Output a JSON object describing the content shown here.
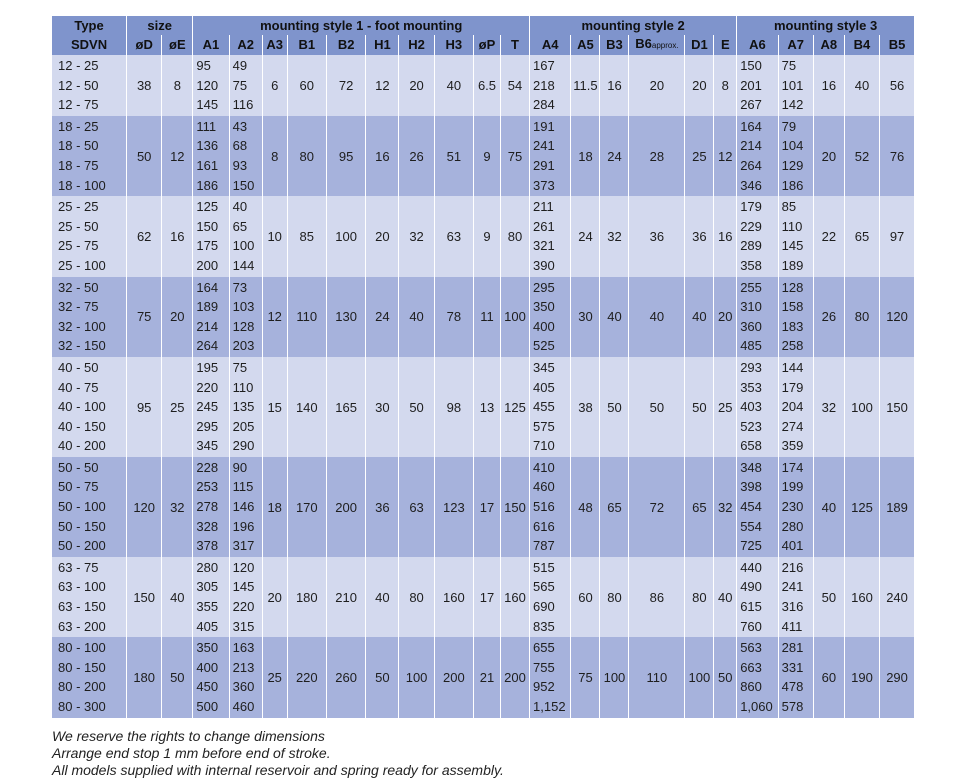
{
  "headers": {
    "type_top": "Type",
    "type_bottom": "SDVN",
    "size": "size",
    "style1": "mounting style 1 - foot mounting",
    "style2": "mounting style 2",
    "style3": "mounting style 3",
    "cols": [
      "øD",
      "øE",
      "A1",
      "A2",
      "A3",
      "B1",
      "B2",
      "H1",
      "H2",
      "H3",
      "øP",
      "T",
      "A4",
      "A5",
      "B3",
      "B6",
      "D1",
      "E",
      "A6",
      "A7",
      "A8",
      "B4",
      "B5"
    ],
    "approx": "approx."
  },
  "groups": [
    {
      "types": [
        "12  -  25",
        "12  -  50",
        "12  -  75"
      ],
      "A1": [
        "95",
        "120",
        "145"
      ],
      "A2": [
        "49",
        "75",
        "116"
      ],
      "A4": [
        "167",
        "218",
        "284"
      ],
      "A6": [
        "150",
        "201",
        "267"
      ],
      "A7": [
        "75",
        "101",
        "142"
      ],
      "common": {
        "D": "38",
        "E": "8",
        "A3": "6",
        "B1": "60",
        "B2": "72",
        "H1": "12",
        "H2": "20",
        "H3": "40",
        "P": "6.5",
        "T": "54",
        "A5": "11.5",
        "B3": "16",
        "B6": "20",
        "D1": "20",
        "E2": "8",
        "A8": "16",
        "B4": "40",
        "B5": "56"
      }
    },
    {
      "types": [
        "18  -  25",
        "18  -  50",
        "18  -  75",
        "18  - 100"
      ],
      "A1": [
        "111",
        "136",
        "161",
        "186"
      ],
      "A2": [
        "43",
        "68",
        "93",
        "150"
      ],
      "A4": [
        "191",
        "241",
        "291",
        "373"
      ],
      "A6": [
        "164",
        "214",
        "264",
        "346"
      ],
      "A7": [
        "79",
        "104",
        "129",
        "186"
      ],
      "common": {
        "D": "50",
        "E": "12",
        "A3": "8",
        "B1": "80",
        "B2": "95",
        "H1": "16",
        "H2": "26",
        "H3": "51",
        "P": "9",
        "T": "75",
        "A5": "18",
        "B3": "24",
        "B6": "28",
        "D1": "25",
        "E2": "12",
        "A8": "20",
        "B4": "52",
        "B5": "76"
      }
    },
    {
      "types": [
        "25  -  25",
        "25  -  50",
        "25  -  75",
        "25  - 100"
      ],
      "A1": [
        "125",
        "150",
        "175",
        "200"
      ],
      "A2": [
        "40",
        "65",
        "100",
        "144"
      ],
      "A4": [
        "211",
        "261",
        "321",
        "390"
      ],
      "A6": [
        "179",
        "229",
        "289",
        "358"
      ],
      "A7": [
        "85",
        "110",
        "145",
        "189"
      ],
      "common": {
        "D": "62",
        "E": "16",
        "A3": "10",
        "B1": "85",
        "B2": "100",
        "H1": "20",
        "H2": "32",
        "H3": "63",
        "P": "9",
        "T": "80",
        "A5": "24",
        "B3": "32",
        "B6": "36",
        "D1": "36",
        "E2": "16",
        "A8": "22",
        "B4": "65",
        "B5": "97"
      }
    },
    {
      "types": [
        "32  -  50",
        "32  -  75",
        "32  - 100",
        "32  - 150"
      ],
      "A1": [
        "164",
        "189",
        "214",
        "264"
      ],
      "A2": [
        "73",
        "103",
        "128",
        "203"
      ],
      "A4": [
        "295",
        "350",
        "400",
        "525"
      ],
      "A6": [
        "255",
        "310",
        "360",
        "485"
      ],
      "A7": [
        "128",
        "158",
        "183",
        "258"
      ],
      "common": {
        "D": "75",
        "E": "20",
        "A3": "12",
        "B1": "110",
        "B2": "130",
        "H1": "24",
        "H2": "40",
        "H3": "78",
        "P": "11",
        "T": "100",
        "A5": "30",
        "B3": "40",
        "B6": "40",
        "D1": "40",
        "E2": "20",
        "A8": "26",
        "B4": "80",
        "B5": "120"
      }
    },
    {
      "types": [
        "40  -  50",
        "40  -  75",
        "40  - 100",
        "40  - 150",
        "40  - 200"
      ],
      "A1": [
        "195",
        "220",
        "245",
        "295",
        "345"
      ],
      "A2": [
        "75",
        "110",
        "135",
        "205",
        "290"
      ],
      "A4": [
        "345",
        "405",
        "455",
        "575",
        "710"
      ],
      "A6": [
        "293",
        "353",
        "403",
        "523",
        "658"
      ],
      "A7": [
        "144",
        "179",
        "204",
        "274",
        "359"
      ],
      "common": {
        "D": "95",
        "E": "25",
        "A3": "15",
        "B1": "140",
        "B2": "165",
        "H1": "30",
        "H2": "50",
        "H3": "98",
        "P": "13",
        "T": "125",
        "A5": "38",
        "B3": "50",
        "B6": "50",
        "D1": "50",
        "E2": "25",
        "A8": "32",
        "B4": "100",
        "B5": "150"
      }
    },
    {
      "types": [
        "50  -  50",
        "50  -  75",
        "50  - 100",
        "50  - 150",
        "50  - 200"
      ],
      "A1": [
        "228",
        "253",
        "278",
        "328",
        "378"
      ],
      "A2": [
        "90",
        "115",
        "146",
        "196",
        "317"
      ],
      "A4": [
        "410",
        "460",
        "516",
        "616",
        "787"
      ],
      "A6": [
        "348",
        "398",
        "454",
        "554",
        "725"
      ],
      "A7": [
        "174",
        "199",
        "230",
        "280",
        "401"
      ],
      "common": {
        "D": "120",
        "E": "32",
        "A3": "18",
        "B1": "170",
        "B2": "200",
        "H1": "36",
        "H2": "63",
        "H3": "123",
        "P": "17",
        "T": "150",
        "A5": "48",
        "B3": "65",
        "B6": "72",
        "D1": "65",
        "E2": "32",
        "A8": "40",
        "B4": "125",
        "B5": "189"
      }
    },
    {
      "types": [
        "63  -  75",
        "63  - 100",
        "63  - 150",
        "63  - 200"
      ],
      "A1": [
        "280",
        "305",
        "355",
        "405"
      ],
      "A2": [
        "120",
        "145",
        "220",
        "315"
      ],
      "A4": [
        "515",
        "565",
        "690",
        "835"
      ],
      "A6": [
        "440",
        "490",
        "615",
        "760"
      ],
      "A7": [
        "216",
        "241",
        "316",
        "411"
      ],
      "common": {
        "D": "150",
        "E": "40",
        "A3": "20",
        "B1": "180",
        "B2": "210",
        "H1": "40",
        "H2": "80",
        "H3": "160",
        "P": "17",
        "T": "160",
        "A5": "60",
        "B3": "80",
        "B6": "86",
        "D1": "80",
        "E2": "40",
        "A8": "50",
        "B4": "160",
        "B5": "240"
      }
    },
    {
      "types": [
        "80  - 100",
        "80  - 150",
        "80  - 200",
        "80  - 300"
      ],
      "A1": [
        "350",
        "400",
        "450",
        "500"
      ],
      "A2": [
        "163",
        "213",
        "360",
        "460"
      ],
      "A4": [
        "655",
        "755",
        "952",
        "1,152"
      ],
      "A6": [
        "563",
        "663",
        "860",
        "1,060"
      ],
      "A7": [
        "281",
        "331",
        "478",
        "578"
      ],
      "common": {
        "D": "180",
        "E": "50",
        "A3": "25",
        "B1": "220",
        "B2": "260",
        "H1": "50",
        "H2": "100",
        "H3": "200",
        "P": "21",
        "T": "200",
        "A5": "75",
        "B3": "100",
        "B6": "110",
        "D1": "100",
        "E2": "50",
        "A8": "60",
        "B4": "190",
        "B5": "290"
      }
    }
  ],
  "notes": [
    "We reserve the rights to change dimensions",
    "Arrange end stop 1 mm before end of stroke.",
    "All models supplied with internal reservoir and spring ready for assembly."
  ]
}
